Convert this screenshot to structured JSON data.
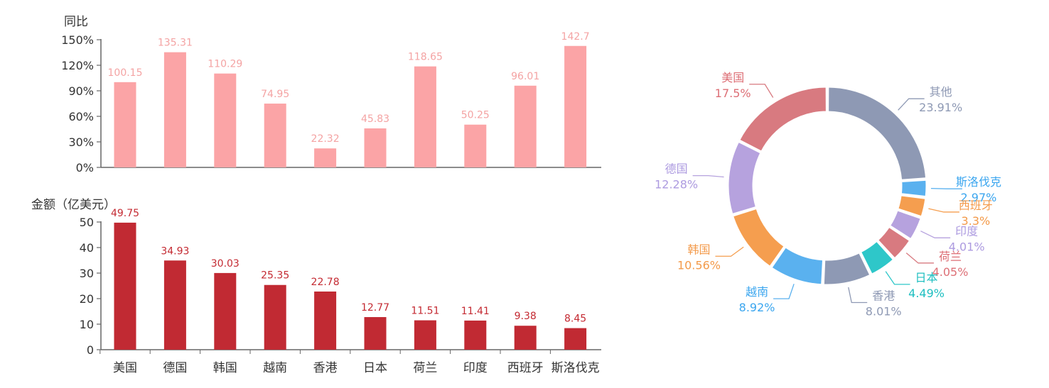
{
  "chart_data": [
    {
      "type": "bar",
      "ylabel": "同比",
      "categories": [
        "美国",
        "德国",
        "韩国",
        "越南",
        "香港",
        "日本",
        "荷兰",
        "印度",
        "西班牙",
        "斯洛伐克"
      ],
      "values": [
        100.15,
        135.31,
        110.29,
        74.95,
        22.32,
        45.83,
        118.65,
        50.25,
        96.01,
        142.7
      ],
      "value_labels": [
        "100.15",
        "135.31",
        "110.29",
        "74.95",
        "22.32",
        "45.83",
        "118.65",
        "50.25",
        "96.01",
        "142.7"
      ],
      "yticks": [
        0,
        30,
        60,
        90,
        120,
        150
      ],
      "ytick_labels": [
        "0%",
        "30%",
        "60%",
        "90%",
        "120%",
        "150%"
      ],
      "ylim": [
        0,
        150
      ],
      "color": "#fba4a6"
    },
    {
      "type": "bar",
      "ylabel": "金额（亿美元）",
      "categories": [
        "美国",
        "德国",
        "韩国",
        "越南",
        "香港",
        "日本",
        "荷兰",
        "印度",
        "西班牙",
        "斯洛伐克"
      ],
      "values": [
        49.75,
        34.93,
        30.03,
        25.35,
        22.78,
        12.77,
        11.51,
        11.41,
        9.38,
        8.45
      ],
      "value_labels": [
        "49.75",
        "34.93",
        "30.03",
        "25.35",
        "22.78",
        "12.77",
        "11.51",
        "11.41",
        "9.38",
        "8.45"
      ],
      "yticks": [
        0,
        10,
        20,
        30,
        40,
        50
      ],
      "ytick_labels": [
        "0",
        "10",
        "20",
        "30",
        "40",
        "50"
      ],
      "ylim": [
        0,
        50
      ],
      "color": "#c12a33"
    },
    {
      "type": "pie",
      "slices": [
        {
          "name": "其他",
          "value": 23.91,
          "label": "23.91%",
          "color": "#8e99b4",
          "text_color": "#8e99b4"
        },
        {
          "name": "斯洛伐克",
          "value": 2.97,
          "label": "2.97%",
          "color": "#5ab1ef",
          "text_color": "#3ba6ef"
        },
        {
          "name": "西班牙",
          "value": 3.3,
          "label": "3.3%",
          "color": "#f59e4f",
          "text_color": "#f39a4a"
        },
        {
          "name": "印度",
          "value": 4.01,
          "label": "4.01%",
          "color": "#b6a2de",
          "text_color": "#ad9be0"
        },
        {
          "name": "荷兰",
          "value": 4.05,
          "label": "4.05%",
          "color": "#d87a80",
          "text_color": "#dd6f76"
        },
        {
          "name": "日本",
          "value": 4.49,
          "label": "4.49%",
          "color": "#2ec7c9",
          "text_color": "#1fbfc1"
        },
        {
          "name": "香港",
          "value": 8.01,
          "label": "8.01%",
          "color": "#8e99b4",
          "text_color": "#8e99b4"
        },
        {
          "name": "越南",
          "value": 8.92,
          "label": "8.92%",
          "color": "#5ab1ef",
          "text_color": "#3ba6ef"
        },
        {
          "name": "韩国",
          "value": 10.56,
          "label": "10.56%",
          "color": "#f59e4f",
          "text_color": "#f39a4a"
        },
        {
          "name": "德国",
          "value": 12.28,
          "label": "12.28%",
          "color": "#b6a2de",
          "text_color": "#ad9be0"
        },
        {
          "name": "美国",
          "value": 17.5,
          "label": "17.5%",
          "color": "#d87a80",
          "text_color": "#dd6f76"
        }
      ]
    }
  ]
}
